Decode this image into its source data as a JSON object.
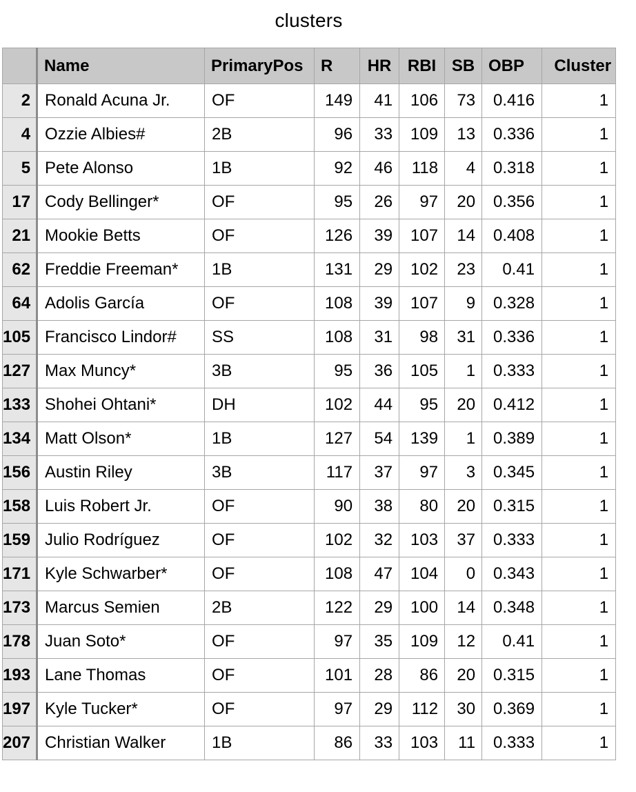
{
  "title": "clusters",
  "columns": [
    "Name",
    "PrimaryPos",
    "R",
    "HR",
    "RBI",
    "SB",
    "OBP",
    "Cluster"
  ],
  "rows": [
    {
      "idx": "2",
      "name": "Ronald Acuna Jr.",
      "pos": "OF",
      "r": "149",
      "hr": "41",
      "rbi": "106",
      "sb": "73",
      "obp": "0.416",
      "cluster": "1"
    },
    {
      "idx": "4",
      "name": "Ozzie Albies#",
      "pos": "2B",
      "r": "96",
      "hr": "33",
      "rbi": "109",
      "sb": "13",
      "obp": "0.336",
      "cluster": "1"
    },
    {
      "idx": "5",
      "name": "Pete Alonso",
      "pos": "1B",
      "r": "92",
      "hr": "46",
      "rbi": "118",
      "sb": "4",
      "obp": "0.318",
      "cluster": "1"
    },
    {
      "idx": "17",
      "name": "Cody Bellinger*",
      "pos": "OF",
      "r": "95",
      "hr": "26",
      "rbi": "97",
      "sb": "20",
      "obp": "0.356",
      "cluster": "1"
    },
    {
      "idx": "21",
      "name": "Mookie Betts",
      "pos": "OF",
      "r": "126",
      "hr": "39",
      "rbi": "107",
      "sb": "14",
      "obp": "0.408",
      "cluster": "1"
    },
    {
      "idx": "62",
      "name": "Freddie Freeman*",
      "pos": "1B",
      "r": "131",
      "hr": "29",
      "rbi": "102",
      "sb": "23",
      "obp": "0.41",
      "cluster": "1"
    },
    {
      "idx": "64",
      "name": "Adolis García",
      "pos": "OF",
      "r": "108",
      "hr": "39",
      "rbi": "107",
      "sb": "9",
      "obp": "0.328",
      "cluster": "1"
    },
    {
      "idx": "105",
      "name": "Francisco Lindor#",
      "pos": "SS",
      "r": "108",
      "hr": "31",
      "rbi": "98",
      "sb": "31",
      "obp": "0.336",
      "cluster": "1"
    },
    {
      "idx": "127",
      "name": "Max Muncy*",
      "pos": "3B",
      "r": "95",
      "hr": "36",
      "rbi": "105",
      "sb": "1",
      "obp": "0.333",
      "cluster": "1"
    },
    {
      "idx": "133",
      "name": "Shohei Ohtani*",
      "pos": "DH",
      "r": "102",
      "hr": "44",
      "rbi": "95",
      "sb": "20",
      "obp": "0.412",
      "cluster": "1"
    },
    {
      "idx": "134",
      "name": "Matt Olson*",
      "pos": "1B",
      "r": "127",
      "hr": "54",
      "rbi": "139",
      "sb": "1",
      "obp": "0.389",
      "cluster": "1"
    },
    {
      "idx": "156",
      "name": "Austin Riley",
      "pos": "3B",
      "r": "117",
      "hr": "37",
      "rbi": "97",
      "sb": "3",
      "obp": "0.345",
      "cluster": "1"
    },
    {
      "idx": "158",
      "name": "Luis Robert Jr.",
      "pos": "OF",
      "r": "90",
      "hr": "38",
      "rbi": "80",
      "sb": "20",
      "obp": "0.315",
      "cluster": "1"
    },
    {
      "idx": "159",
      "name": "Julio Rodríguez",
      "pos": "OF",
      "r": "102",
      "hr": "32",
      "rbi": "103",
      "sb": "37",
      "obp": "0.333",
      "cluster": "1"
    },
    {
      "idx": "171",
      "name": "Kyle Schwarber*",
      "pos": "OF",
      "r": "108",
      "hr": "47",
      "rbi": "104",
      "sb": "0",
      "obp": "0.343",
      "cluster": "1"
    },
    {
      "idx": "173",
      "name": "Marcus Semien",
      "pos": "2B",
      "r": "122",
      "hr": "29",
      "rbi": "100",
      "sb": "14",
      "obp": "0.348",
      "cluster": "1"
    },
    {
      "idx": "178",
      "name": "Juan Soto*",
      "pos": "OF",
      "r": "97",
      "hr": "35",
      "rbi": "109",
      "sb": "12",
      "obp": "0.41",
      "cluster": "1"
    },
    {
      "idx": "193",
      "name": "Lane Thomas",
      "pos": "OF",
      "r": "101",
      "hr": "28",
      "rbi": "86",
      "sb": "20",
      "obp": "0.315",
      "cluster": "1"
    },
    {
      "idx": "197",
      "name": "Kyle Tucker*",
      "pos": "OF",
      "r": "97",
      "hr": "29",
      "rbi": "112",
      "sb": "30",
      "obp": "0.369",
      "cluster": "1"
    },
    {
      "idx": "207",
      "name": "Christian Walker",
      "pos": "1B",
      "r": "86",
      "hr": "33",
      "rbi": "103",
      "sb": "11",
      "obp": "0.333",
      "cluster": "1"
    }
  ]
}
